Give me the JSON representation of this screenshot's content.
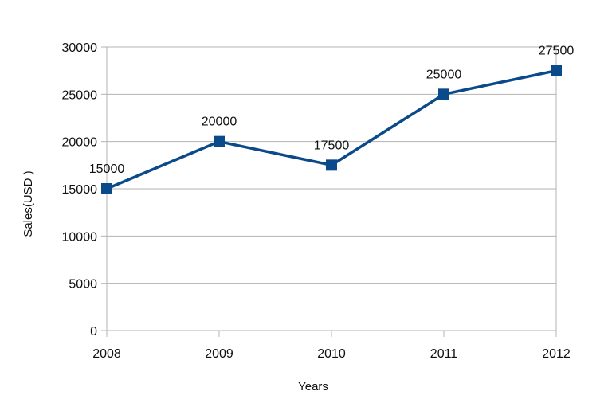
{
  "chart_data": {
    "type": "line",
    "title": "",
    "xlabel": "Years",
    "ylabel": "Sales(USD )",
    "categories": [
      "2008",
      "2009",
      "2010",
      "2011",
      "2012"
    ],
    "series": [
      {
        "values": [
          15000,
          20000,
          17500,
          25000,
          27500
        ],
        "color": "#0a4a8a"
      }
    ],
    "data_labels": [
      "15000",
      "20000",
      "17500",
      "25000",
      "27500"
    ],
    "ylim": [
      0,
      30000
    ],
    "yticks": [
      "0",
      "5000",
      "10000",
      "15000",
      "20000",
      "25000",
      "30000"
    ],
    "grid": true,
    "legend": "none"
  }
}
